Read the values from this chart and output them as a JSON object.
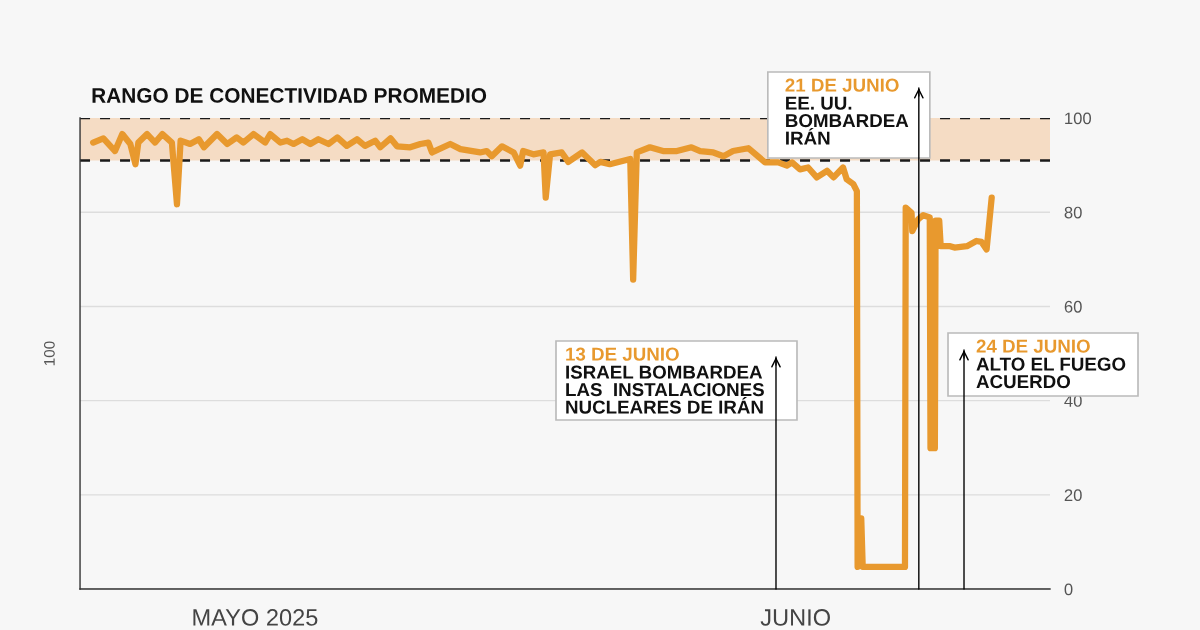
{
  "chart_data": {
    "type": "line",
    "ylabel": "100",
    "x": [
      "2025-05-04T23:00",
      "2025-05-05T13:00",
      "2025-05-06T05:00",
      "2025-05-06T15:00",
      "2025-05-07T02:00",
      "2025-05-07T09:00",
      "2025-05-07T13:00",
      "2025-05-08T01:00",
      "2025-05-08T12:00",
      "2025-05-08T22:00",
      "2025-05-09T11:00",
      "2025-05-09T18:00",
      "2025-05-09T23:00",
      "2025-05-10T12:00",
      "2025-05-11T00:00",
      "2025-05-11T07:00",
      "2025-05-12T01:00",
      "2025-05-12T15:00",
      "2025-05-13T04:00",
      "2025-05-13T13:00",
      "2025-05-14T03:00",
      "2025-05-14T19:00",
      "2025-05-15T02:00",
      "2025-05-15T16:00",
      "2025-05-16T01:00",
      "2025-05-16T10:00",
      "2025-05-16T22:00",
      "2025-05-17T09:00",
      "2025-05-17T20:00",
      "2025-05-18T10:00",
      "2025-05-18T22:00",
      "2025-05-19T11:00",
      "2025-05-20T01:00",
      "2025-05-20T12:00",
      "2025-05-21T02:00",
      "2025-05-21T09:00",
      "2025-05-21T23:00",
      "2025-05-22T08:00",
      "2025-05-23T02:00",
      "2025-05-23T16:00",
      "2025-05-24T03:00",
      "2025-05-24T08:00",
      "2025-05-25T09:00",
      "2025-05-25T23:00",
      "2025-05-27T02:00",
      "2025-05-27T11:00",
      "2025-05-27T18:00",
      "2025-05-28T08:00",
      "2025-05-29T00:00",
      "2025-05-29T09:00",
      "2025-05-29T13:00",
      "2025-05-30T03:00",
      "2025-05-30T17:00",
      "2025-05-30T20:00",
      "2025-05-31T02:00",
      "2025-05-31T18:00",
      "2025-06-01T03:00",
      "2025-06-01T22:00",
      "2025-06-02T16:00",
      "2025-06-02T23:00",
      "2025-06-03T12:00",
      "2025-06-04T16:00",
      "2025-06-04T20:00",
      "2025-06-05T01:00",
      "2025-06-05T19:00",
      "2025-06-06T13:00",
      "2025-06-07T08:00",
      "2025-06-08T04:00",
      "2025-06-08T16:00",
      "2025-06-09T10:00",
      "2025-06-10T00:00",
      "2025-06-10T13:00",
      "2025-06-11T10:00",
      "2025-06-12T09:00",
      "2025-06-13T03:00",
      "2025-06-13T15:00",
      "2025-06-13T22:00",
      "2025-06-14T09:00",
      "2025-06-14T20:00",
      "2025-06-15T08:00",
      "2025-06-15T22:00",
      "2025-06-16T07:00",
      "2025-06-16T20:00",
      "2025-06-17T01:00",
      "2025-06-17T10:00",
      "2025-06-17T15:00",
      "2025-06-17T16:00",
      "2025-06-17T19:00",
      "2025-06-17T21:00",
      "2025-06-17T23:00",
      "2025-06-20T09:00",
      "2025-06-20T10:00",
      "2025-06-20T18:00",
      "2025-06-20T19:00",
      "2025-06-21T03:00",
      "2025-06-21T10:00",
      "2025-06-21T19:00",
      "2025-06-21T20:00",
      "2025-06-22T02:00",
      "2025-06-22T03:00",
      "2025-06-22T08:00",
      "2025-06-22T10:00",
      "2025-06-22T23:00",
      "2025-06-23T05:00",
      "2025-06-23T22:00",
      "2025-06-24T11:00",
      "2025-06-24T18:00",
      "2025-06-25T01:00",
      "2025-06-25T08:00"
    ],
    "series": [
      {
        "color": "#e8992e",
        "values": [
          94.8,
          95.7,
          93.0,
          96.6,
          94.5,
          90.2,
          94.8,
          96.6,
          94.8,
          96.6,
          94.8,
          81.7,
          95.2,
          94.5,
          95.5,
          93.8,
          96.6,
          94.5,
          95.9,
          94.8,
          96.6,
          94.8,
          96.6,
          94.8,
          95.2,
          94.5,
          95.5,
          94.5,
          95.5,
          94.5,
          95.9,
          94.1,
          95.5,
          94.1,
          95.2,
          93.8,
          95.7,
          94.0,
          93.8,
          94.5,
          94.8,
          92.7,
          94.5,
          93.4,
          92.7,
          93.0,
          91.9,
          94.0,
          92.7,
          89.9,
          93.0,
          92.3,
          92.7,
          83.1,
          92.3,
          92.7,
          90.7,
          92.7,
          90.0,
          90.7,
          90.2,
          91.3,
          65.7,
          92.7,
          93.8,
          93.0,
          93.0,
          93.8,
          93.0,
          92.7,
          91.9,
          93.0,
          93.6,
          90.6,
          90.6,
          89.9,
          90.6,
          89.1,
          89.5,
          87.4,
          88.8,
          87.4,
          89.5,
          87.0,
          86.0,
          84.5,
          4.7,
          15.0,
          15.0,
          4.7,
          4.7,
          81.0,
          79.9,
          76.0,
          78.5,
          79.4,
          78.9,
          29.9,
          29.9,
          78.2,
          78.2,
          72.8,
          72.8,
          72.5,
          72.8,
          73.9,
          73.7,
          72.1,
          83.1
        ]
      }
    ],
    "xlim": [
      "2025-05-04T05:00",
      "2025-06-28T16:00"
    ],
    "xticks": [
      {
        "value": "2025-05-14T05:00",
        "label": "MAYO 2025"
      },
      {
        "value": "2025-06-14T03:00",
        "label": "JUNIO"
      }
    ],
    "ylim": [
      0,
      100
    ],
    "yticks": [
      0,
      20,
      40,
      60,
      80,
      100
    ],
    "grid": "y",
    "bands": [
      {
        "axis": "y",
        "from": 91,
        "to": 100,
        "label": "RANGO DE CONECTIVIDAD PROMEDIO",
        "color": "#f5dcc4"
      }
    ],
    "ref_lines": [
      {
        "axis": "y",
        "value": 91,
        "line_style": "dashed",
        "color": "#1a1a1a"
      },
      {
        "axis": "y",
        "value": 100,
        "line_style": "dashed",
        "color": "#1a1a1a"
      },
      {
        "axis": "x",
        "value": "2025-06-13T00:00",
        "label": "13 DE JUNIO\nISRAEL BOMBARDEA\nLAS  INSTALACIONES\nNUCLEARES DE IRÁN",
        "color": "#000000"
      },
      {
        "axis": "x",
        "value": "2025-06-21T04:00",
        "label": "21 DE JUNIO\nEE. UU.\nBOMBARDEA\nIRÁN",
        "color": "#000000"
      },
      {
        "axis": "x",
        "value": "2025-06-23T18:00",
        "label": "24 DE JUNIO\nALTO EL FUEGO\nACUERDO",
        "color": "#000000"
      }
    ]
  }
}
